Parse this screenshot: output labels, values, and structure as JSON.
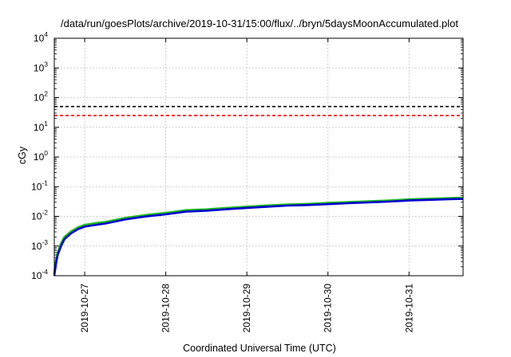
{
  "chart_data": {
    "type": "line",
    "title": "/data/run/goesPlots/archive/2019-10-31/15:00/flux/../bryn/5daysMoonAccumulated.plot",
    "xlabel": "Coordinated Universal Time (UTC)",
    "ylabel": "cGy",
    "yscale": "log",
    "ylim": [
      0.0001,
      10000
    ],
    "xlim": [
      "2019-10-26T15:00",
      "2019-10-31T16:00"
    ],
    "grid": true,
    "y_ticks": [
      {
        "base": "10",
        "exp": "4"
      },
      {
        "base": "10",
        "exp": "3"
      },
      {
        "base": "10",
        "exp": "2"
      },
      {
        "base": "10",
        "exp": "1"
      },
      {
        "base": "10",
        "exp": "0"
      },
      {
        "base": "10",
        "exp": "-1"
      },
      {
        "base": "10",
        "exp": "-2"
      },
      {
        "base": "10",
        "exp": "-3"
      },
      {
        "base": "10",
        "exp": "-4"
      }
    ],
    "x_ticks": [
      "2019-10-27",
      "2019-10-28",
      "2019-10-29",
      "2019-10-30",
      "2019-10-31"
    ],
    "thresholds": [
      {
        "value": 50,
        "color": "#000000",
        "style": "dashed"
      },
      {
        "value": 25,
        "color": "#ff0000",
        "style": "dashed"
      }
    ],
    "series": [
      {
        "color": "#22bb22",
        "x": [
          "2019-10-26T15:00",
          "2019-10-26T15:30",
          "2019-10-26T16:00",
          "2019-10-26T17:00",
          "2019-10-26T18:00",
          "2019-10-26T20:00",
          "2019-10-26T22:00",
          "2019-10-27T00:00",
          "2019-10-27T03:00",
          "2019-10-27T06:00",
          "2019-10-27T09:00",
          "2019-10-27T12:00",
          "2019-10-27T18:00",
          "2019-10-28T00:00",
          "2019-10-28T06:00",
          "2019-10-28T12:00",
          "2019-10-28T18:00",
          "2019-10-29T00:00",
          "2019-10-29T06:00",
          "2019-10-29T12:00",
          "2019-10-29T18:00",
          "2019-10-30T00:00",
          "2019-10-30T06:00",
          "2019-10-30T12:00",
          "2019-10-30T18:00",
          "2019-10-31T00:00",
          "2019-10-31T06:00",
          "2019-10-31T12:00",
          "2019-10-31T16:00"
        ],
        "values": [
          0.00012,
          0.0003,
          0.0006,
          0.0012,
          0.002,
          0.0031,
          0.0042,
          0.0051,
          0.0058,
          0.0064,
          0.0075,
          0.0088,
          0.011,
          0.013,
          0.016,
          0.017,
          0.019,
          0.021,
          0.023,
          0.025,
          0.026,
          0.028,
          0.03,
          0.032,
          0.034,
          0.037,
          0.039,
          0.041,
          0.042
        ]
      },
      {
        "color": "#0000cc",
        "x": [
          "2019-10-26T15:00",
          "2019-10-26T15:30",
          "2019-10-26T16:00",
          "2019-10-26T17:00",
          "2019-10-26T18:00",
          "2019-10-26T20:00",
          "2019-10-26T22:00",
          "2019-10-27T00:00",
          "2019-10-27T03:00",
          "2019-10-27T06:00",
          "2019-10-27T09:00",
          "2019-10-27T12:00",
          "2019-10-27T18:00",
          "2019-10-28T00:00",
          "2019-10-28T06:00",
          "2019-10-28T12:00",
          "2019-10-28T18:00",
          "2019-10-29T00:00",
          "2019-10-29T06:00",
          "2019-10-29T12:00",
          "2019-10-29T18:00",
          "2019-10-30T00:00",
          "2019-10-30T06:00",
          "2019-10-30T12:00",
          "2019-10-30T18:00",
          "2019-10-31T00:00",
          "2019-10-31T06:00",
          "2019-10-31T12:00",
          "2019-10-31T16:00"
        ],
        "values": [
          0.0001,
          0.00025,
          0.0005,
          0.001,
          0.0017,
          0.0027,
          0.0037,
          0.0045,
          0.0051,
          0.0057,
          0.0067,
          0.0079,
          0.0099,
          0.0117,
          0.0144,
          0.0155,
          0.0173,
          0.0192,
          0.0211,
          0.023,
          0.024,
          0.0258,
          0.0277,
          0.0295,
          0.0314,
          0.0342,
          0.036,
          0.0379,
          0.0388
        ]
      }
    ]
  }
}
